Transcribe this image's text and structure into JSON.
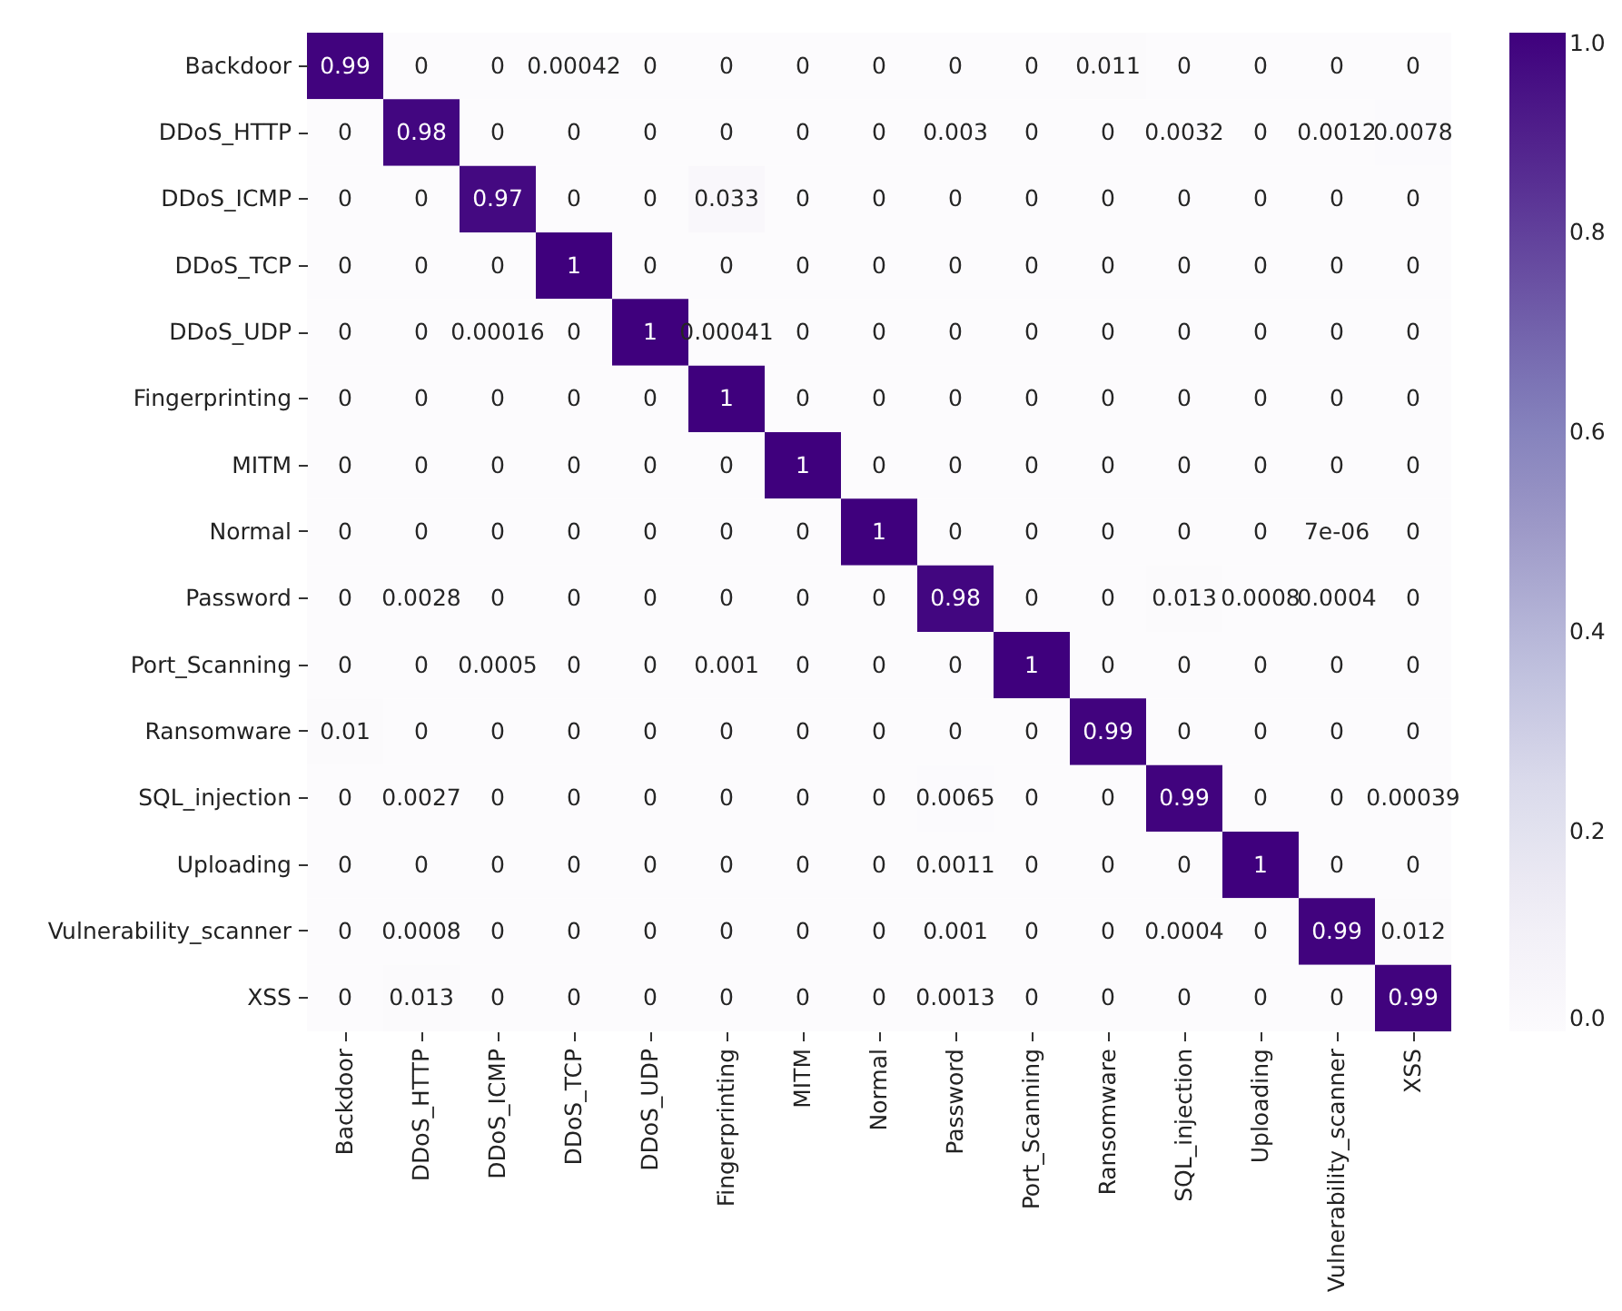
{
  "chart_data": {
    "type": "heatmap",
    "categories": [
      "Backdoor",
      "DDoS_HTTP",
      "DDoS_ICMP",
      "DDoS_TCP",
      "DDoS_UDP",
      "Fingerprinting",
      "MITM",
      "Normal",
      "Password",
      "Port_Scanning",
      "Ransomware",
      "SQL_injection",
      "Uploading",
      "Vulnerability_scanner",
      "XSS"
    ],
    "y_categories": [
      "Backdoor",
      "DDoS_HTTP",
      "DDoS_ICMP",
      "DDoS_TCP",
      "DDoS_UDP",
      "Fingerprinting",
      "MITM",
      "Normal",
      "Password",
      "Port_Scanning",
      "Ransomware",
      "SQL_injection",
      "Uploading",
      "Vulnerability_scanner",
      "XSS"
    ],
    "cells": [
      [
        0.99,
        0,
        0,
        0.00042,
        0,
        0,
        0,
        0,
        0,
        0,
        0.011,
        0,
        0,
        0,
        0
      ],
      [
        0,
        0.98,
        0,
        0,
        0,
        0,
        0,
        0,
        0.003,
        0,
        0,
        0.0032,
        0,
        0.0012,
        0.0078
      ],
      [
        0,
        0,
        0.97,
        0,
        0,
        0.033,
        0,
        0,
        0,
        0,
        0,
        0,
        0,
        0,
        0
      ],
      [
        0,
        0,
        0,
        1,
        0,
        0,
        0,
        0,
        0,
        0,
        0,
        0,
        0,
        0,
        0
      ],
      [
        0,
        0,
        0.00016,
        0,
        1,
        0.00041,
        0,
        0,
        0,
        0,
        0,
        0,
        0,
        0,
        0
      ],
      [
        0,
        0,
        0,
        0,
        0,
        1,
        0,
        0,
        0,
        0,
        0,
        0,
        0,
        0,
        0
      ],
      [
        0,
        0,
        0,
        0,
        0,
        0,
        1,
        0,
        0,
        0,
        0,
        0,
        0,
        0,
        0
      ],
      [
        0,
        0,
        0,
        0,
        0,
        0,
        0,
        1,
        0,
        0,
        0,
        0,
        0,
        7e-06,
        0
      ],
      [
        0,
        0.0028,
        0,
        0,
        0,
        0,
        0,
        0,
        0.98,
        0,
        0,
        0.013,
        0.0008,
        0.0004,
        0
      ],
      [
        0,
        0,
        0.0005,
        0,
        0,
        0.001,
        0,
        0,
        0,
        1,
        0,
        0,
        0,
        0,
        0
      ],
      [
        0.01,
        0,
        0,
        0,
        0,
        0,
        0,
        0,
        0,
        0,
        0.99,
        0,
        0,
        0,
        0
      ],
      [
        0,
        0.0027,
        0,
        0,
        0,
        0,
        0,
        0,
        0.0065,
        0,
        0,
        0.99,
        0,
        0,
        0.00039
      ],
      [
        0,
        0,
        0,
        0,
        0,
        0,
        0,
        0,
        0.0011,
        0,
        0,
        0,
        1,
        0,
        0
      ],
      [
        0,
        0.0008,
        0,
        0,
        0,
        0,
        0,
        0,
        0.001,
        0,
        0,
        0.0004,
        0,
        0.99,
        0.012
      ],
      [
        0,
        0.013,
        0,
        0,
        0,
        0,
        0,
        0,
        0.0013,
        0,
        0,
        0,
        0,
        0,
        0.99
      ]
    ],
    "cell_labels": [
      [
        "0.99",
        "0",
        "0",
        "0.00042",
        "0",
        "0",
        "0",
        "0",
        "0",
        "0",
        "0.011",
        "0",
        "0",
        "0",
        "0"
      ],
      [
        "0",
        "0.98",
        "0",
        "0",
        "0",
        "0",
        "0",
        "0",
        "0.003",
        "0",
        "0",
        "0.0032",
        "0",
        "0.0012",
        "0.0078"
      ],
      [
        "0",
        "0",
        "0.97",
        "0",
        "0",
        "0.033",
        "0",
        "0",
        "0",
        "0",
        "0",
        "0",
        "0",
        "0",
        "0"
      ],
      [
        "0",
        "0",
        "0",
        "1",
        "0",
        "0",
        "0",
        "0",
        "0",
        "0",
        "0",
        "0",
        "0",
        "0",
        "0"
      ],
      [
        "0",
        "0",
        "0.00016",
        "0",
        "1",
        "0.00041",
        "0",
        "0",
        "0",
        "0",
        "0",
        "0",
        "0",
        "0",
        "0"
      ],
      [
        "0",
        "0",
        "0",
        "0",
        "0",
        "1",
        "0",
        "0",
        "0",
        "0",
        "0",
        "0",
        "0",
        "0",
        "0"
      ],
      [
        "0",
        "0",
        "0",
        "0",
        "0",
        "0",
        "1",
        "0",
        "0",
        "0",
        "0",
        "0",
        "0",
        "0",
        "0"
      ],
      [
        "0",
        "0",
        "0",
        "0",
        "0",
        "0",
        "0",
        "1",
        "0",
        "0",
        "0",
        "0",
        "0",
        "7e-06",
        "0"
      ],
      [
        "0",
        "0.0028",
        "0",
        "0",
        "0",
        "0",
        "0",
        "0",
        "0.98",
        "0",
        "0",
        "0.013",
        "0.0008",
        "0.0004",
        "0"
      ],
      [
        "0",
        "0",
        "0.0005",
        "0",
        "0",
        "0.001",
        "0",
        "0",
        "0",
        "1",
        "0",
        "0",
        "0",
        "0",
        "0"
      ],
      [
        "0.01",
        "0",
        "0",
        "0",
        "0",
        "0",
        "0",
        "0",
        "0",
        "0",
        "0.99",
        "0",
        "0",
        "0",
        "0"
      ],
      [
        "0",
        "0.0027",
        "0",
        "0",
        "0",
        "0",
        "0",
        "0",
        "0.0065",
        "0",
        "0",
        "0.99",
        "0",
        "0",
        "0.00039"
      ],
      [
        "0",
        "0",
        "0",
        "0",
        "0",
        "0",
        "0",
        "0",
        "0.0011",
        "0",
        "0",
        "0",
        "1",
        "0",
        "0"
      ],
      [
        "0",
        "0.0008",
        "0",
        "0",
        "0",
        "0",
        "0",
        "0",
        "0.001",
        "0",
        "0",
        "0.0004",
        "0",
        "0.99",
        "0.012"
      ],
      [
        "0",
        "0.013",
        "0",
        "0",
        "0",
        "0",
        "0",
        "0",
        "0.0013",
        "0",
        "0",
        "0",
        "0",
        "0",
        "0.99"
      ]
    ],
    "clim": [
      0,
      1
    ],
    "cticks": [
      {
        "value": 0,
        "label": "0.0"
      },
      0.2,
      0.4,
      0.6,
      0.8,
      {
        "value": 1,
        "label": "1.0"
      }
    ]
  }
}
